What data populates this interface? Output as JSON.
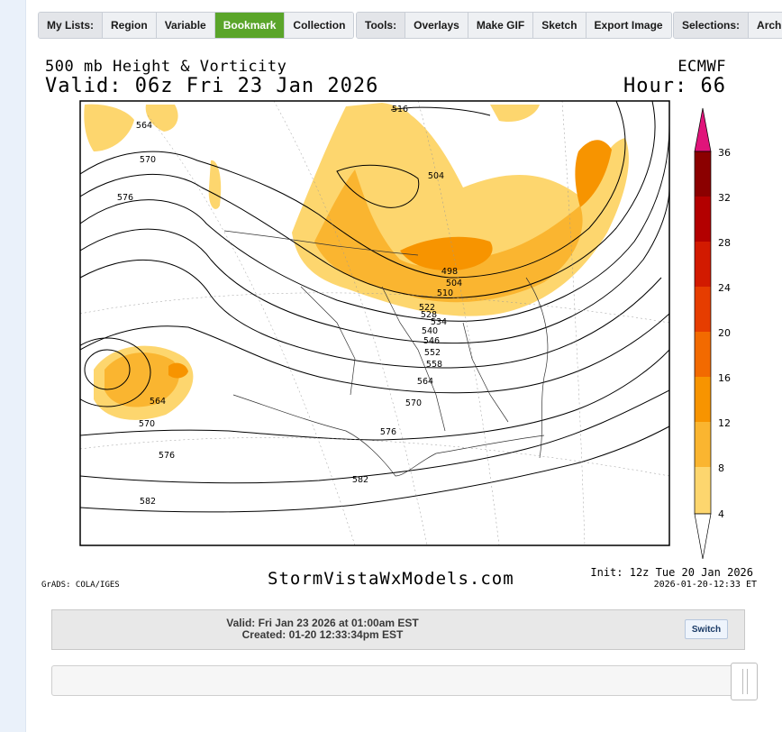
{
  "toolbar_lists": {
    "label": "My Lists:",
    "items": [
      "Region",
      "Variable",
      "Bookmark",
      "Collection"
    ],
    "active": "Bookmark"
  },
  "toolbar_tools": {
    "label": "Tools:",
    "items": [
      "Overlays",
      "Make GIF",
      "Sketch",
      "Export Image"
    ]
  },
  "toolbar_selections": {
    "label": "Selections:",
    "items": [
      "Archi"
    ]
  },
  "map": {
    "title": "500 mb Height & Vorticity",
    "model": "ECMWF",
    "valid": "Valid: 06z Fri 23 Jan 2026",
    "hour": "Hour: 66",
    "site": "StormVistaWxModels.com",
    "credit": "GrADS: COLA/IGES",
    "init": "Init: 12z Tue 20 Jan 2026",
    "generated": "2026-01-20-12:33 ET",
    "contour_labels": [
      "516",
      "504",
      "498",
      "504",
      "510",
      "522",
      "528",
      "534",
      "540",
      "546",
      "552",
      "558",
      "564",
      "570",
      "576",
      "582",
      "564",
      "570",
      "576",
      "564",
      "570",
      "576",
      "582"
    ],
    "colorbar_ticks": [
      "36",
      "32",
      "28",
      "24",
      "20",
      "16",
      "12",
      "8",
      "4"
    ],
    "colorbar_colors": [
      "#8b0000",
      "#b30000",
      "#d21a00",
      "#e63d00",
      "#f26a00",
      "#f79400",
      "#fab530",
      "#fdd66e",
      "#fff0a8"
    ],
    "arrow_color": "#e0147a"
  },
  "info": {
    "valid": "Valid: Fri Jan 23 2026 at 01:00am EST",
    "created": "Created: 01-20 12:33:34pm EST",
    "switch_label": "Switch"
  }
}
